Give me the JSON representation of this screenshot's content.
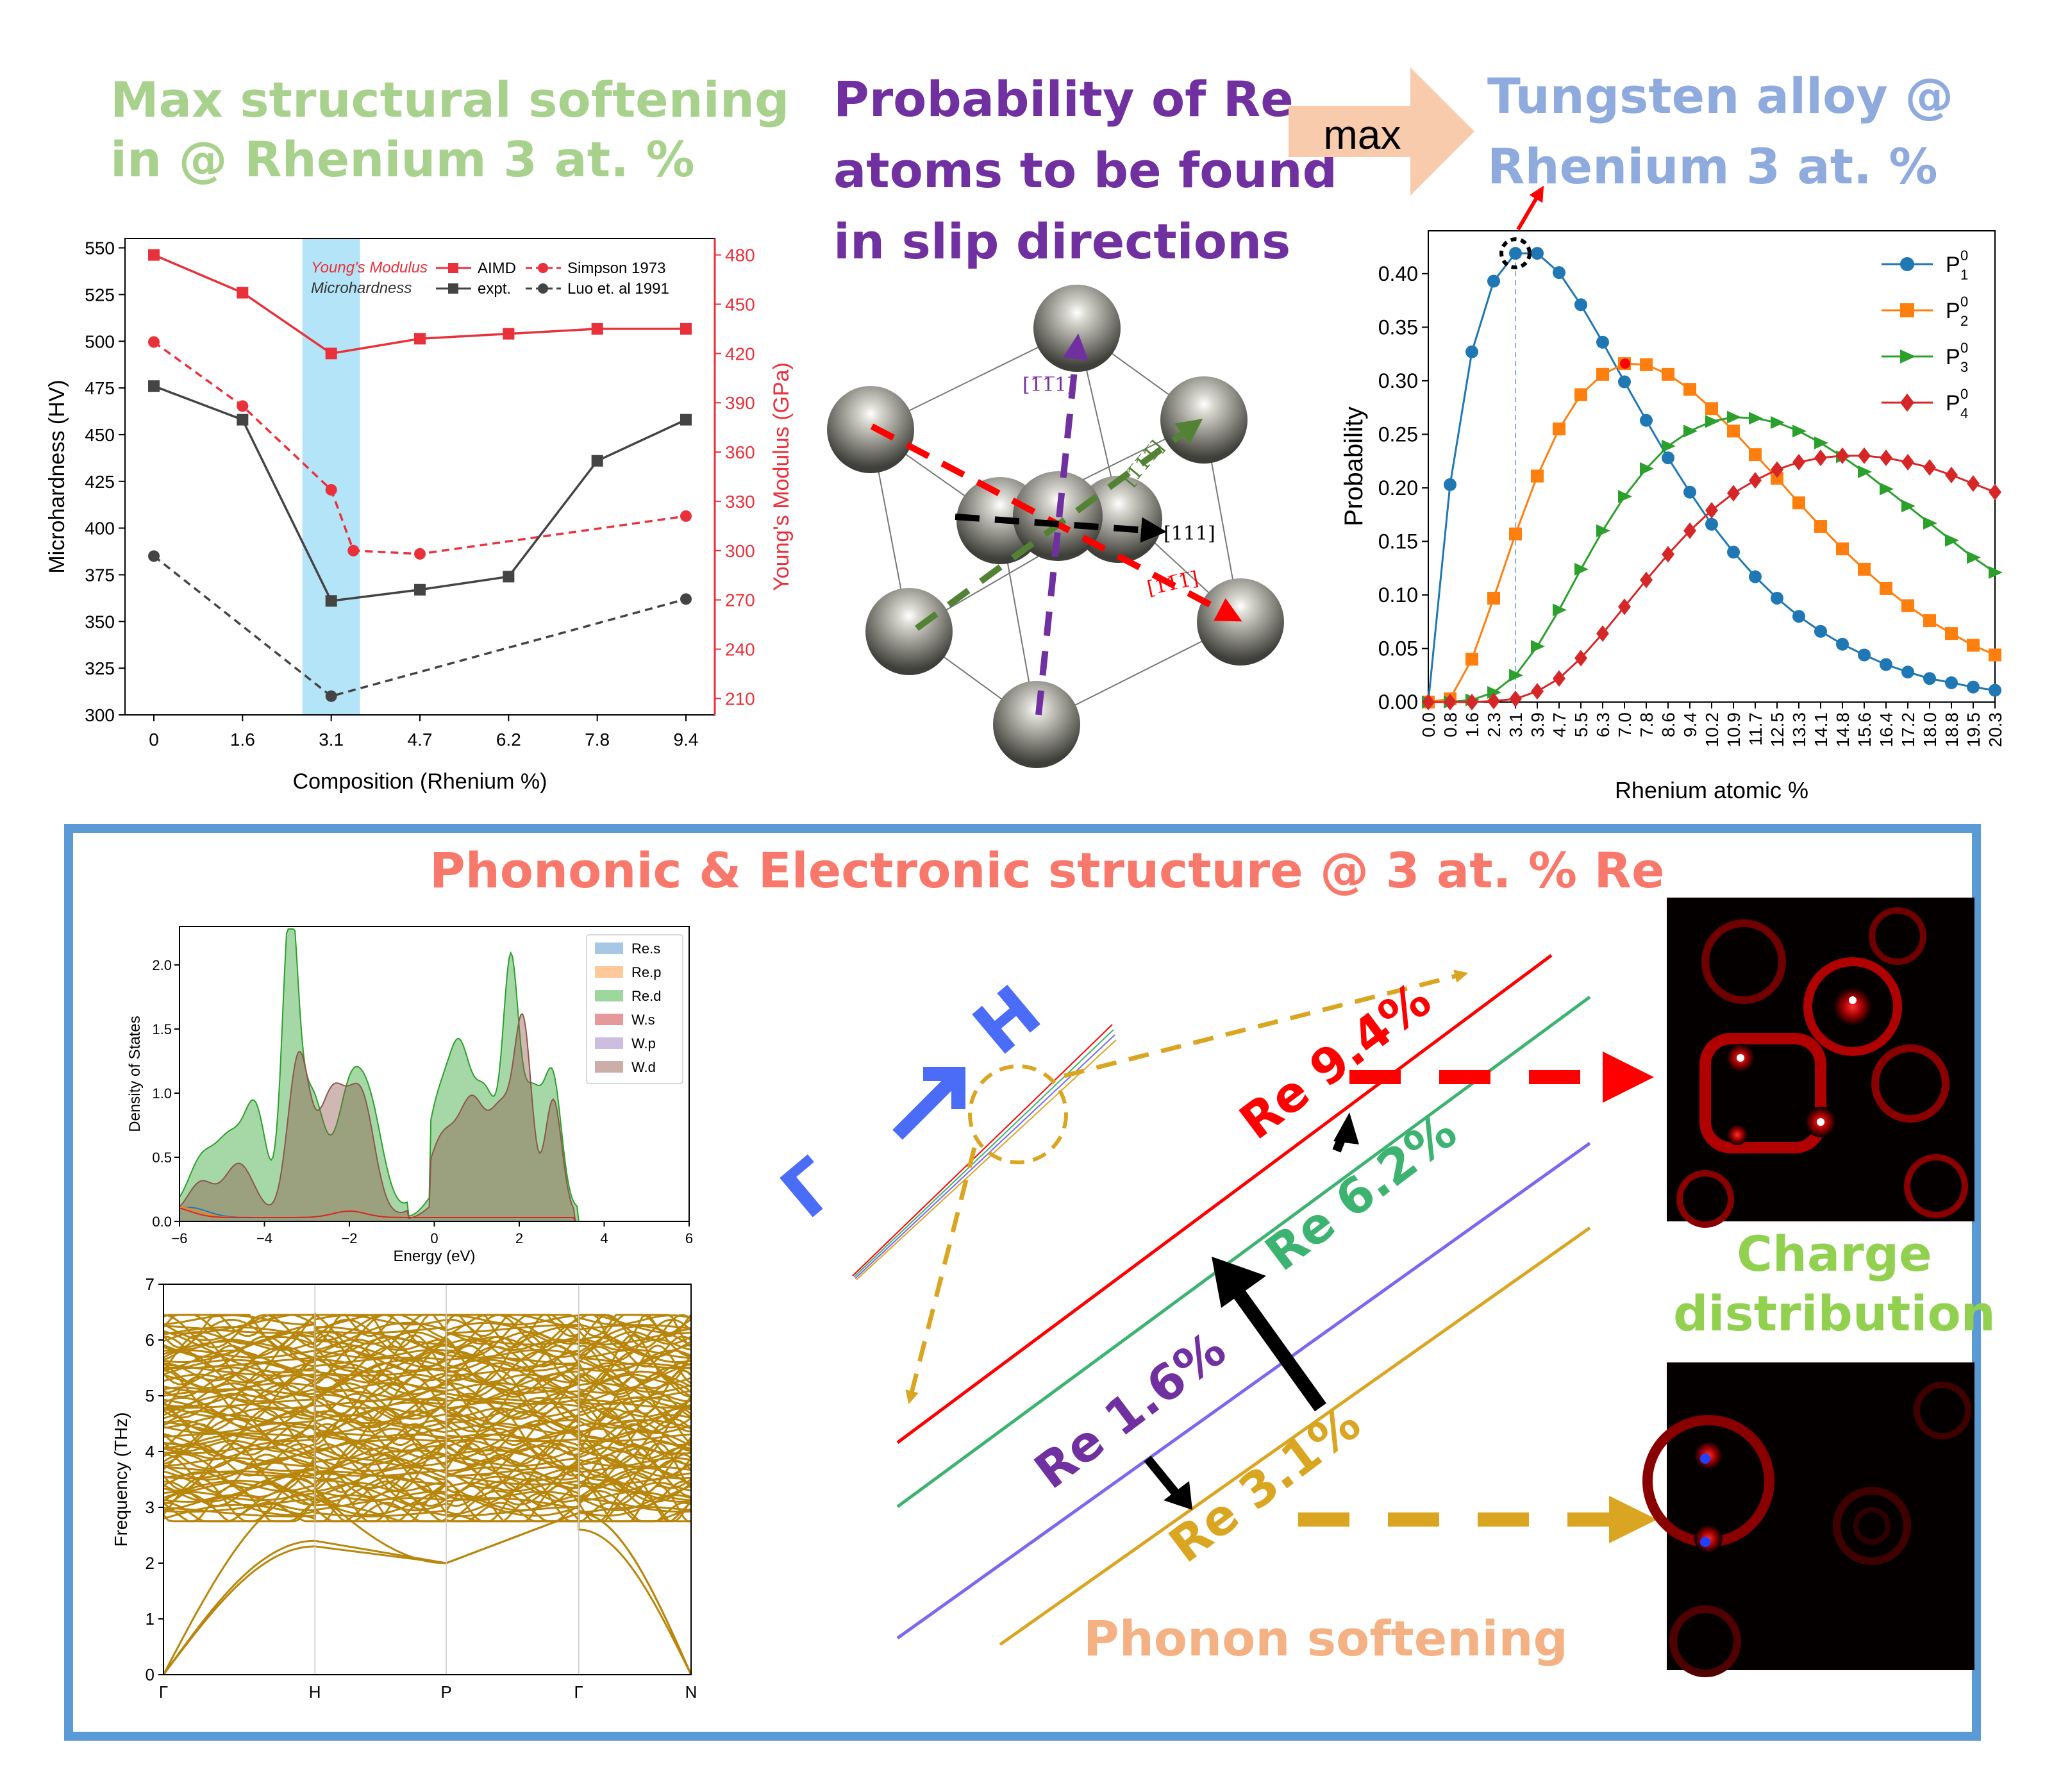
{
  "titles": {
    "softening": [
      "Max structural softening",
      "in  @ Rhenium 3 at. %"
    ],
    "probability": [
      "Probability of Re",
      "atoms to be found",
      "in slip directions"
    ],
    "arrow_label": "max",
    "alloy": [
      "Tungsten alloy @",
      "Rhenium 3 at. %"
    ],
    "phononic": "Phononic & Electronic structure @ 3 at. % Re",
    "charge": [
      "Charge",
      "distribution"
    ],
    "phonon_softening": "Phonon softening"
  },
  "colors": {
    "softening_title": "#a9d18e",
    "probability_title": "#7030a0",
    "alloy_title": "#8faadc",
    "phononic_title": "#f8796b",
    "charge_title": "#92d050",
    "phonon_title": "#f4b183",
    "frame": "#5b9bd5",
    "max_arrow": "#f8cbad"
  },
  "crystal": {
    "labels": [
      "[1̅1̅1]",
      "[1̅1̅1̅]",
      "[111]",
      "[11̅1̅]"
    ]
  },
  "bands": {
    "gamma": "Γ",
    "h": "H",
    "lines": [
      {
        "label": "Re 9.4%",
        "color": "#ff0000"
      },
      {
        "label": "Re 6.2%",
        "color": "#3cb371"
      },
      {
        "label": "Re 1.6%",
        "color": "#7b68ee"
      },
      {
        "label": "Re 3.1%",
        "color": "#daa520"
      }
    ],
    "label_colors": {
      "Re 9.4%": "#ff0000",
      "Re 6.2%": "#3cb371",
      "Re 1.6%": "#7030a0",
      "Re 3.1%": "#daa520"
    }
  },
  "chart_data": [
    {
      "type": "line",
      "xlabel": "Composition (Rhenium %)",
      "ylabel": "Microhardness (HV)",
      "y2label": "Young's Modulus (GPa)",
      "categories": [
        "0",
        "1.6",
        "3.1",
        "4.7",
        "6.2",
        "7.8",
        "9.4"
      ],
      "ylim": [
        300,
        555
      ],
      "yticks": [
        300,
        325,
        350,
        375,
        400,
        425,
        450,
        475,
        500,
        525,
        550
      ],
      "y2lim": [
        200,
        490
      ],
      "y2ticks": [
        210,
        240,
        270,
        300,
        330,
        360,
        390,
        420,
        450,
        480
      ],
      "highlight_category": "3.1",
      "legend": {
        "ym_label": "Young's Modulus",
        "mh_label": "Microhardness",
        "entries": [
          "AIMD",
          "expt.",
          "Simpson 1973",
          "Luo et. al 1991"
        ]
      },
      "series": [
        {
          "name": "AIMD",
          "axis": "y2",
          "color": "#e8313b",
          "style": "solid",
          "marker": "square",
          "values": [
            480,
            457,
            420,
            429,
            432,
            435,
            435
          ]
        },
        {
          "name": "Simpson 1973",
          "axis": "y2",
          "color": "#e8313b",
          "style": "dashed",
          "marker": "circle",
          "values": [
            427,
            388,
            337,
            300,
            298,
            null,
            321
          ],
          "xi": [
            0,
            1,
            2,
            2.25,
            3,
            null,
            6
          ]
        },
        {
          "name": "expt.",
          "axis": "y",
          "color": "#444444",
          "style": "solid",
          "marker": "square",
          "values": [
            476,
            458,
            361,
            367,
            374,
            436,
            458
          ]
        },
        {
          "name": "Luo et. al 1991",
          "axis": "y",
          "color": "#444444",
          "style": "dashed",
          "marker": "circle",
          "values": [
            385,
            null,
            310,
            null,
            null,
            null,
            362
          ]
        }
      ]
    },
    {
      "type": "line",
      "xlabel": "Rhenium atomic %",
      "ylabel": "Probability",
      "x": [
        "0.0",
        "0.8",
        "1.6",
        "2.3",
        "3.1",
        "3.9",
        "4.7",
        "5.5",
        "6.3",
        "7.0",
        "7.8",
        "8.6",
        "9.4",
        "10.2",
        "10.9",
        "11.7",
        "12.5",
        "13.3",
        "14.1",
        "14.8",
        "15.6",
        "16.4",
        "17.2",
        "18.0",
        "18.8",
        "19.5",
        "20.3"
      ],
      "ylim": [
        0,
        0.44
      ],
      "yticks": [
        "0.00",
        "0.05",
        "0.10",
        "0.15",
        "0.20",
        "0.25",
        "0.30",
        "0.35",
        "0.40"
      ],
      "legend": [
        "P",
        "P",
        "P",
        "P"
      ],
      "legend_sub": [
        "1",
        "2",
        "3",
        "4"
      ],
      "legend_sup": [
        "0",
        "0",
        "0",
        "0"
      ],
      "series": [
        {
          "name": "P1",
          "color": "#1f77b4",
          "marker": "circle",
          "values": [
            0.0,
            0.203,
            0.327,
            0.393,
            0.419,
            0.419,
            0.401,
            0.371,
            0.336,
            0.299,
            0.263,
            0.228,
            0.196,
            0.166,
            0.14,
            0.117,
            0.097,
            0.08,
            0.066,
            0.054,
            0.044,
            0.035,
            0.028,
            0.022,
            0.018,
            0.014,
            0.011
          ]
        },
        {
          "name": "P2",
          "color": "#ff7f0e",
          "marker": "square",
          "values": [
            0.0,
            0.003,
            0.04,
            0.097,
            0.157,
            0.211,
            0.255,
            0.287,
            0.306,
            0.316,
            0.315,
            0.306,
            0.292,
            0.274,
            0.253,
            0.231,
            0.209,
            0.186,
            0.164,
            0.143,
            0.124,
            0.106,
            0.09,
            0.076,
            0.064,
            0.053,
            0.044
          ]
        },
        {
          "name": "P3",
          "color": "#2ca02c",
          "marker": "triangle",
          "values": [
            0.0,
            0.0,
            0.002,
            0.009,
            0.025,
            0.052,
            0.086,
            0.124,
            0.16,
            0.192,
            0.218,
            0.239,
            0.253,
            0.262,
            0.266,
            0.265,
            0.261,
            0.253,
            0.242,
            0.229,
            0.215,
            0.199,
            0.183,
            0.167,
            0.151,
            0.135,
            0.121
          ]
        },
        {
          "name": "P4",
          "color": "#d62728",
          "marker": "diamond",
          "values": [
            0.0,
            0.0,
            0.0,
            0.001,
            0.003,
            0.01,
            0.022,
            0.041,
            0.064,
            0.089,
            0.114,
            0.138,
            0.16,
            0.179,
            0.195,
            0.207,
            0.217,
            0.224,
            0.228,
            0.23,
            0.23,
            0.228,
            0.224,
            0.219,
            0.212,
            0.204,
            0.196
          ]
        }
      ]
    },
    {
      "type": "area",
      "xlabel": "Energy (eV)",
      "ylabel": "Density of States",
      "xlim": [
        -6,
        6
      ],
      "ylim": [
        0,
        2.3
      ],
      "xticks": [
        "−6",
        "−4",
        "−2",
        "0",
        "2",
        "4",
        "6"
      ],
      "yticks": [
        "0.0",
        "0.5",
        "1.0",
        "1.5",
        "2.0"
      ],
      "legend": [
        "Re.s",
        "Re.p",
        "Re.d",
        "W.s",
        "W.p",
        "W.d"
      ],
      "legend_colors": [
        "#a6c8e6",
        "#fdc89a",
        "#9ed79e",
        "#e6999a",
        "#cdbde0",
        "#cbaea8"
      ],
      "series": [
        {
          "name": "Re.d",
          "color": "#2ca02c",
          "peaks": [
            [
              -5.5,
              0.35,
              0.3
            ],
            [
              -4.8,
              0.55,
              0.35
            ],
            [
              -4.2,
              0.7,
              0.25
            ],
            [
              -3.4,
              2.2,
              0.18
            ],
            [
              -2.9,
              0.9,
              0.3
            ],
            [
              -2.0,
              0.85,
              0.3
            ],
            [
              -1.5,
              0.7,
              0.3
            ],
            [
              0.1,
              0.8,
              0.3
            ],
            [
              0.6,
              1.0,
              0.25
            ],
            [
              1.2,
              0.9,
              0.3
            ],
            [
              1.8,
              1.75,
              0.18
            ],
            [
              2.3,
              0.9,
              0.25
            ],
            [
              2.8,
              0.95,
              0.2
            ]
          ],
          "cutoff": 3.4,
          "base": 0.1
        },
        {
          "name": "W.d",
          "color": "#8c564b",
          "peaks": [
            [
              -5.5,
              0.25,
              0.3
            ],
            [
              -4.6,
              0.4,
              0.35
            ],
            [
              -3.2,
              1.2,
              0.25
            ],
            [
              -2.4,
              0.95,
              0.35
            ],
            [
              -1.7,
              0.85,
              0.3
            ],
            [
              0.2,
              0.6,
              0.35
            ],
            [
              0.9,
              0.8,
              0.3
            ],
            [
              1.6,
              0.8,
              0.3
            ],
            [
              2.1,
              1.35,
              0.2
            ],
            [
              2.8,
              0.9,
              0.2
            ]
          ],
          "cutoff": 3.3,
          "base": 0.05
        }
      ]
    },
    {
      "type": "line",
      "xlabel": "",
      "ylabel": "Frequency (THz)",
      "ylim": [
        0,
        7
      ],
      "yticks": [
        "0",
        "1",
        "2",
        "3",
        "4",
        "5",
        "6",
        "7"
      ],
      "kpoints": [
        "Γ",
        "H",
        "P",
        "Γ",
        "N"
      ],
      "color": "#b8860b"
    }
  ]
}
